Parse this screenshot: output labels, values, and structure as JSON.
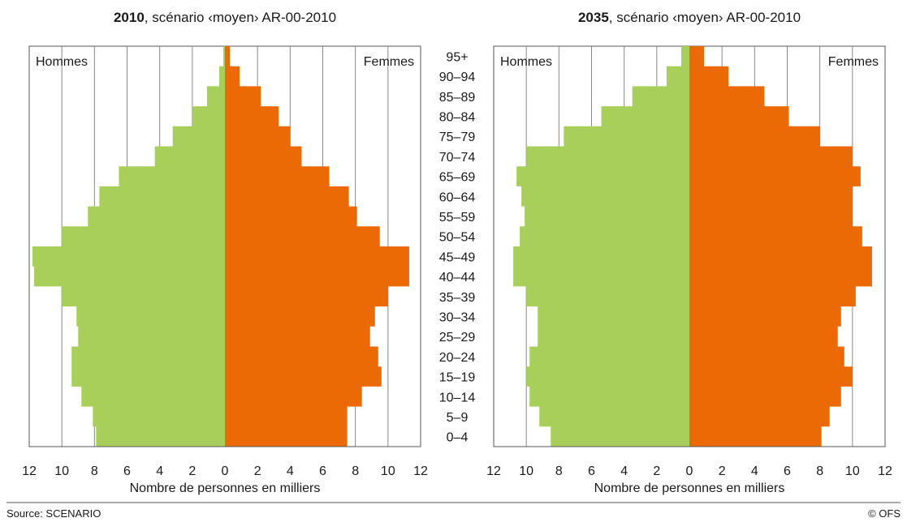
{
  "chart_data": [
    {
      "type": "bar",
      "subtype": "population-pyramid",
      "title_year": "2010",
      "title_rest": ", scénario ‹moyen›  AR-00-2010",
      "xlabel": "Nombre de personnes en milliers",
      "left_label": "Hommes",
      "right_label": "Femmes",
      "xlim": [
        0,
        12
      ],
      "xticks": [
        "12",
        "10",
        "8",
        "6",
        "4",
        "2",
        "0",
        "2",
        "4",
        "6",
        "8",
        "10",
        "12"
      ],
      "grid": true,
      "categories": [
        "0–4",
        "5–9",
        "10–14",
        "15–19",
        "20–24",
        "25–29",
        "30–34",
        "35–39",
        "40–44",
        "45–49",
        "50–54",
        "55–59",
        "60–64",
        "65–69",
        "70–74",
        "75–79",
        "80–84",
        "85–89",
        "90–94",
        "95+"
      ],
      "series": [
        {
          "name": "Hommes",
          "color": "#a8cf5a",
          "values": [
            7.9,
            8.1,
            8.8,
            9.4,
            9.4,
            9.0,
            9.1,
            10.0,
            11.7,
            11.8,
            10.0,
            8.4,
            7.7,
            6.5,
            4.3,
            3.2,
            2.0,
            1.1,
            0.35,
            0.1
          ]
        },
        {
          "name": "Femmes",
          "color": "#ec6a05",
          "values": [
            7.5,
            7.5,
            8.4,
            9.6,
            9.4,
            8.9,
            9.2,
            10.0,
            11.3,
            11.3,
            9.5,
            8.1,
            7.6,
            6.4,
            4.7,
            4.0,
            3.3,
            2.2,
            0.9,
            0.3
          ]
        }
      ]
    },
    {
      "type": "bar",
      "subtype": "population-pyramid",
      "title_year": "2035",
      "title_rest": ", scénario ‹moyen› AR-00-2010",
      "xlabel": "Nombre de personnes en milliers",
      "left_label": "Hommes",
      "right_label": "Femmes",
      "xlim": [
        0,
        12
      ],
      "xticks": [
        "12",
        "10",
        "8",
        "6",
        "4",
        "2",
        "0",
        "2",
        "4",
        "6",
        "8",
        "10",
        "12"
      ],
      "grid": true,
      "categories": [
        "0–4",
        "5–9",
        "10–14",
        "15–19",
        "20–24",
        "25–29",
        "30–34",
        "35–39",
        "40–44",
        "45–49",
        "50–54",
        "55–59",
        "60–64",
        "65–69",
        "70–74",
        "75–79",
        "80–84",
        "85–89",
        "90–94",
        "95+"
      ],
      "series": [
        {
          "name": "Hommes",
          "color": "#a8cf5a",
          "values": [
            8.5,
            9.2,
            9.8,
            10.0,
            9.8,
            9.3,
            9.3,
            10.0,
            10.8,
            10.8,
            10.4,
            10.1,
            10.3,
            10.6,
            10.0,
            7.7,
            5.4,
            3.5,
            1.4,
            0.5
          ]
        },
        {
          "name": "Femmes",
          "color": "#ec6a05",
          "values": [
            8.1,
            8.6,
            9.3,
            10.0,
            9.5,
            9.1,
            9.3,
            10.2,
            11.2,
            11.2,
            10.6,
            10.0,
            10.0,
            10.5,
            10.0,
            8.0,
            6.1,
            4.6,
            2.4,
            0.9
          ]
        }
      ]
    }
  ],
  "footer": {
    "source": "Source: SCENARIO",
    "credit": "© OFS"
  }
}
